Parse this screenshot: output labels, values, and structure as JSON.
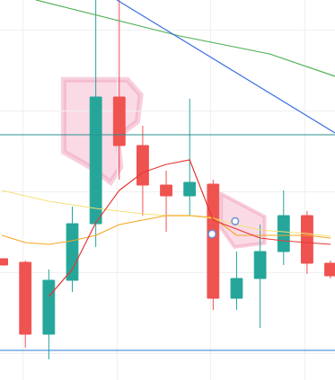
{
  "chart_data": {
    "type": "candlestick",
    "x": [
      0,
      1,
      2,
      3,
      4,
      5,
      6,
      7,
      8,
      9,
      10,
      11,
      12,
      13,
      14
    ],
    "xlim": [
      -0.08,
      14.19
    ],
    "ylim": [
      0,
      423
    ],
    "xticks": [
      0.9,
      4.9,
      8.9,
      12.9
    ],
    "yticks": [
      30,
      120,
      210,
      300,
      390
    ],
    "grid": true,
    "tick_labels": false,
    "series": [
      {
        "type": "candlestick",
        "open": [
          135,
          131,
          51,
          111,
          174,
          315,
          261,
          217,
          205,
          218,
          91,
          113,
          143,
          183,
          130
        ],
        "high": [
          135,
          133,
          123,
          193,
          430,
          430,
          283,
          233,
          313,
          223,
          143,
          173,
          211,
          188,
          133
        ],
        "low": [
          128,
          36,
          23,
          98,
          148,
          223,
          183,
          165,
          183,
          78,
          78,
          58,
          128,
          118,
          113
        ],
        "close": [
          128,
          51,
          111,
          174,
          315,
          261,
          217,
          205,
          220,
          91,
          113,
          143,
          183,
          130,
          116
        ],
        "colors": [
          "#ef5350",
          "#ef5350",
          "#26a69a",
          "#26a69a",
          "#26a69a",
          "#ef5350",
          "#ef5350",
          "#ef5350",
          "#26a69a",
          "#ef5350",
          "#26a69a",
          "#26a69a",
          "#26a69a",
          "#ef5350",
          "#ef5350"
        ]
      },
      {
        "type": "line",
        "color": "#f5e27a",
        "values": [
          211,
          205,
          199,
          195,
          191,
          188,
          185,
          183,
          183,
          180,
          173,
          167,
          165,
          163,
          160
        ]
      },
      {
        "type": "line",
        "color": "#f5a623",
        "values": [
          161,
          153,
          151,
          155,
          161,
          173,
          178,
          183,
          183,
          181,
          161,
          161,
          161,
          161,
          158
        ]
      },
      {
        "type": "line",
        "color": "#e53935",
        "values": [
          null,
          null,
          93,
          123,
          175,
          211,
          231,
          240,
          245,
          178,
          168,
          158,
          155,
          153,
          151
        ]
      },
      {
        "type": "line",
        "color": "#4caf50",
        "x": [
          1.45,
          3.75,
          7.57,
          11.4,
          14.19
        ],
        "values": [
          423,
          408,
          383,
          363,
          338
        ]
      },
      {
        "type": "line",
        "color": "#3d6fe0",
        "x": [
          4.9,
          14.19
        ],
        "values": [
          423,
          275
        ]
      },
      {
        "type": "line",
        "color": "#2a8f8f",
        "x": [
          -0.08,
          14.19
        ],
        "values": [
          273,
          273
        ]
      },
      {
        "type": "line",
        "color": "#2f7fd1",
        "x": [
          -0.08,
          14.19
        ],
        "values": [
          33,
          33
        ]
      }
    ]
  }
}
